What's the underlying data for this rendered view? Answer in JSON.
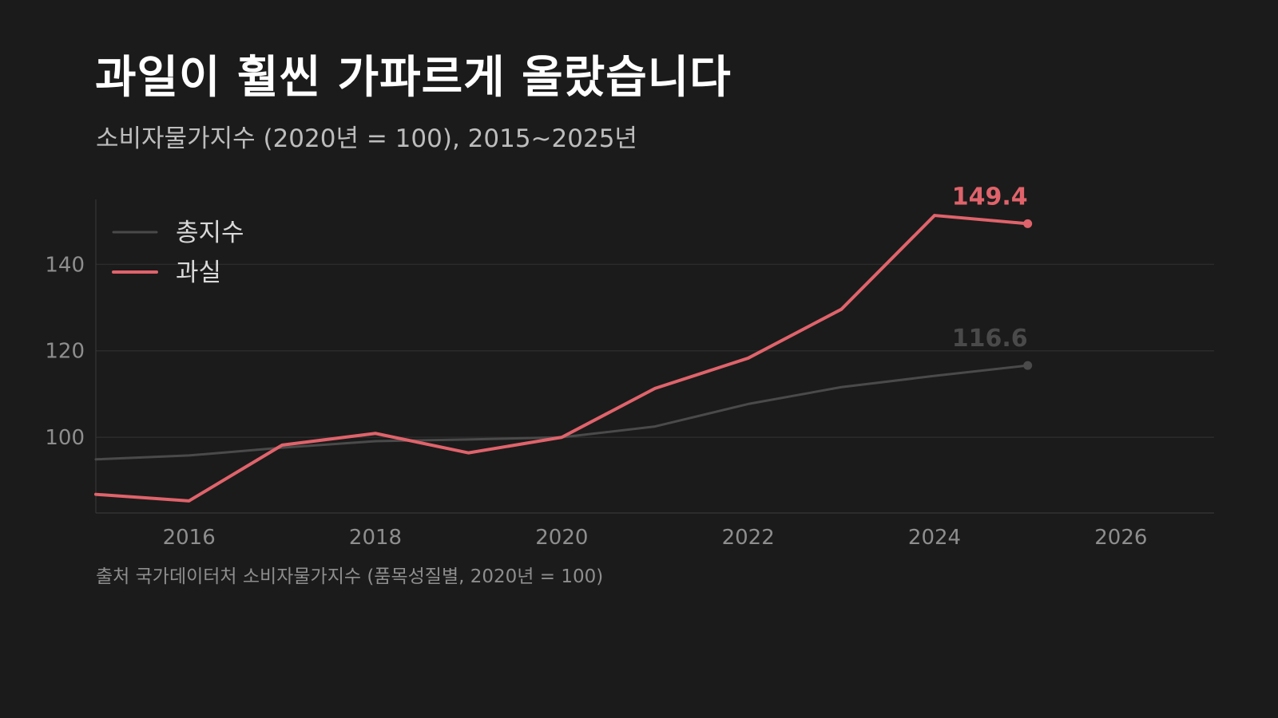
{
  "chart_data": {
    "type": "line",
    "title": "과일이 훨씬 가파르게 올랐습니다",
    "subtitle": "소비자물가지수 (2020년 = 100), 2015~2025년",
    "source": "출처 국가데이터처 소비자물가지수 (품목성질별, 2020년 = 100)",
    "x": [
      2015,
      2016,
      2017,
      2018,
      2019,
      2020,
      2021,
      2022,
      2023,
      2024,
      2025
    ],
    "xlim": [
      2015,
      2027
    ],
    "ylim": [
      82.5,
      155
    ],
    "x_ticks": [
      2016,
      2018,
      2020,
      2022,
      2024,
      2026
    ],
    "y_ticks": [
      100,
      120,
      140
    ],
    "grid": true,
    "legend_position": "top-left",
    "series": [
      {
        "name": "총지수",
        "color": "#4a4a4a",
        "values": [
          94.9,
          95.8,
          97.6,
          99.1,
          99.5,
          100.0,
          102.5,
          107.7,
          111.6,
          114.2,
          116.6
        ],
        "end_label": "116.6"
      },
      {
        "name": "과실",
        "color": "#e0636b",
        "values": [
          86.8,
          85.3,
          98.2,
          100.9,
          96.4,
          100.0,
          111.3,
          118.3,
          129.6,
          151.3,
          149.4
        ],
        "end_label": "149.4"
      }
    ]
  }
}
